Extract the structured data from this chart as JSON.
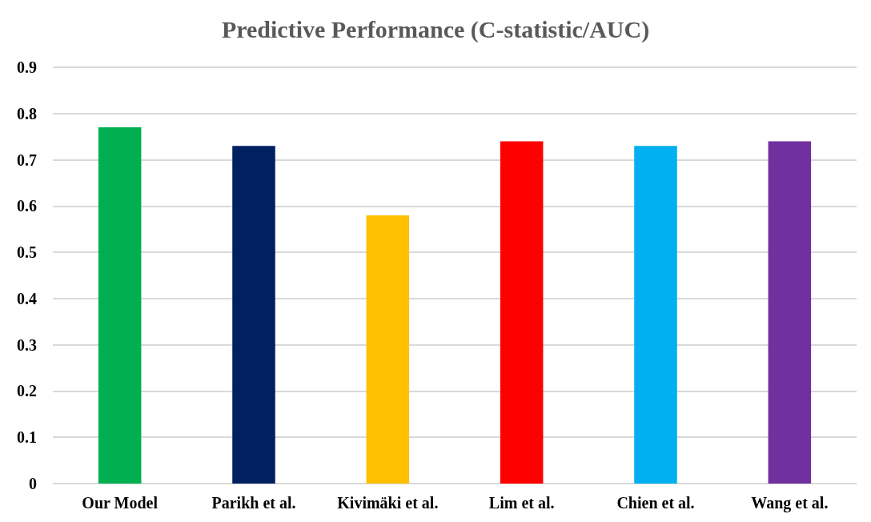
{
  "chart_data": {
    "type": "bar",
    "title": "Predictive Performance (C-statistic/AUC)",
    "categories": [
      "Our Model",
      "Parikh et al.",
      "Kivimäki et al.",
      "Lim et al.",
      "Chien et al.",
      "Wang et al."
    ],
    "values": [
      0.77,
      0.73,
      0.58,
      0.74,
      0.73,
      0.74
    ],
    "colors": [
      "#00b050",
      "#002060",
      "#ffc000",
      "#ff0000",
      "#00b0f0",
      "#7030a0"
    ],
    "ylim": [
      0,
      0.9
    ],
    "yticks": [
      0,
      0.1,
      0.2,
      0.3,
      0.4,
      0.5,
      0.6,
      0.7,
      0.8,
      0.9
    ],
    "grid": "y"
  }
}
